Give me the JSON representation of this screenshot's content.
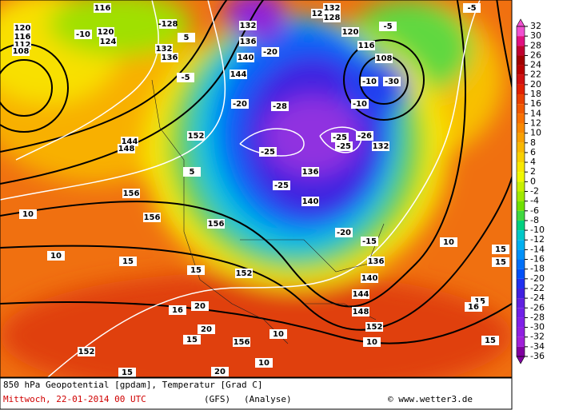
{
  "footer": {
    "title": "850 hPa Geopotential [gpdam], Temperatur [Grad C]",
    "date": "Mittwoch, 22-01-2014  00 UTC",
    "model": "(GFS)",
    "run": "(Analyse)",
    "credit": "© www.wetter3.de"
  },
  "legend": {
    "ticks": [
      32,
      30,
      28,
      26,
      24,
      22,
      20,
      18,
      16,
      14,
      12,
      10,
      8,
      6,
      4,
      2,
      0,
      -2,
      -4,
      -6,
      -8,
      -10,
      -12,
      -14,
      -16,
      -18,
      -20,
      -22,
      -24,
      -26,
      -28,
      -30,
      -32,
      -34,
      -36
    ],
    "colors": [
      "#f050d0",
      "#e01080",
      "#c00030",
      "#a00000",
      "#b80000",
      "#d01010",
      "#e02000",
      "#e84000",
      "#f05800",
      "#f87000",
      "#f88800",
      "#f8a000",
      "#f8b800",
      "#f8d000",
      "#f8e800",
      "#f0f800",
      "#c8f000",
      "#a0e800",
      "#70e000",
      "#40d840",
      "#00d080",
      "#00c8c8",
      "#00b0f0",
      "#0090f8",
      "#0070f8",
      "#0050f8",
      "#2030f0",
      "#4020e0",
      "#6020e0",
      "#7020e8",
      "#8020e8",
      "#9020e0",
      "#a020d8",
      "#8000a0"
    ]
  },
  "map_labels": [
    "116",
    "-10",
    "120",
    "124",
    "116",
    "120",
    "112",
    "108",
    "-128",
    "5",
    "132",
    "136",
    "-5",
    "144",
    "-20",
    "-20",
    "132",
    "136",
    "140",
    "-28",
    "124",
    "132",
    "128",
    "120",
    "-5",
    "116",
    "108",
    "-10",
    "-30",
    "-25",
    "-25",
    "-25",
    "-26",
    "132",
    "136",
    "-25",
    "140",
    "-20",
    "-15",
    "136",
    "140",
    "144",
    "148",
    "10",
    "15",
    "15",
    "10",
    "10",
    "15",
    "15",
    "152",
    "20",
    "20",
    "16",
    "15",
    "152",
    "15",
    "10",
    "10",
    "20",
    "156",
    "10",
    "152",
    "15",
    "16",
    "15",
    "-5",
    "-10",
    "144",
    "148",
    "152",
    "156",
    "156",
    "156",
    "5"
  ]
}
